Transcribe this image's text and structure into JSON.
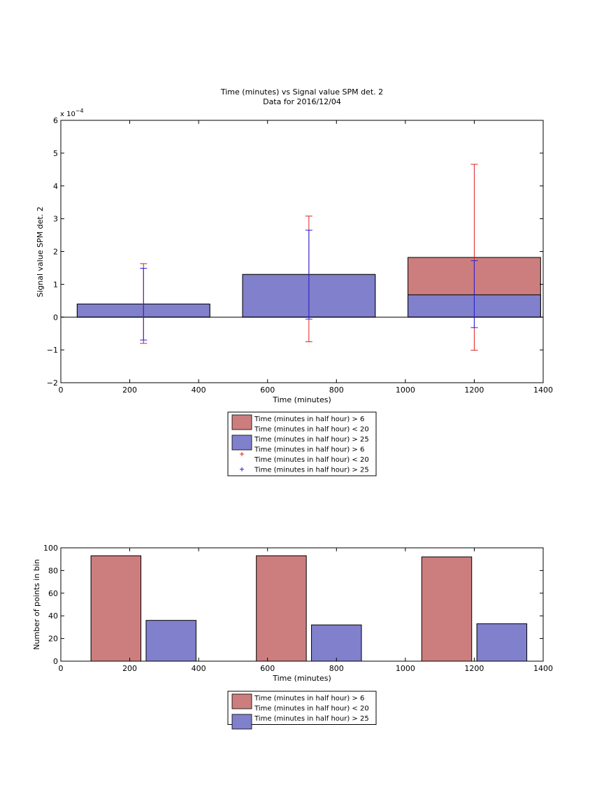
{
  "chart_data": [
    {
      "type": "bar",
      "title": "Time (minutes) vs Signal value SPM det. 2",
      "subtitle": "Data for 2016/12/04",
      "xlabel": "Time (minutes)",
      "ylabel": "Signal value SPM det. 2",
      "y_exponent_label": "x 10",
      "y_exponent_power": "−4",
      "xlim": [
        0,
        1400
      ],
      "ylim": [
        -2,
        6
      ],
      "y_scale_factor": 0.0001,
      "xticks": [
        "0",
        "200",
        "400",
        "600",
        "800",
        "1000",
        "1200",
        "1400"
      ],
      "yticks": [
        "−2",
        "−1",
        "0",
        "1",
        "2",
        "3",
        "4",
        "5",
        "6"
      ],
      "bars": {
        "centers": [
          240,
          720,
          1200
        ],
        "width": 385,
        "series": [
          {
            "color": "#cc7e7e",
            "values": [
              0.38,
              1.3,
              1.82
            ]
          },
          {
            "color": "#8080cc",
            "values": [
              0.4,
              1.3,
              0.68
            ]
          }
        ]
      },
      "errorbars": [
        {
          "color": "#e02020",
          "x": [
            240,
            720,
            1200
          ],
          "lower": [
            -0.8,
            -0.75,
            -1.01
          ],
          "upper": [
            1.63,
            3.08,
            4.66
          ]
        },
        {
          "color": "#2020e0",
          "x": [
            240,
            720,
            1200
          ],
          "lower": [
            -0.7,
            -0.06,
            -0.32
          ],
          "upper": [
            1.49,
            2.65,
            1.72
          ]
        }
      ],
      "legend": {
        "placement": "below",
        "entries": [
          {
            "kind": "patch",
            "color": "#cc7e7e",
            "lines": [
              "Time (minutes in half hour) > 6",
              "Time (minutes in half hour) < 20"
            ]
          },
          {
            "kind": "patch",
            "color": "#8080cc",
            "lines": [
              "Time (minutes in half hour) > 25"
            ]
          },
          {
            "kind": "marker",
            "color": "#e02020",
            "lines": [
              "Time (minutes in half hour) > 6",
              "Time (minutes in half hour) < 20"
            ]
          },
          {
            "kind": "marker",
            "color": "#2020e0",
            "lines": [
              "Time (minutes in half hour) > 25"
            ]
          }
        ]
      }
    },
    {
      "type": "bar",
      "xlabel": "Time (minutes)",
      "ylabel": "Number of points in bin",
      "xlim": [
        0,
        1400
      ],
      "ylim": [
        0,
        100
      ],
      "xticks": [
        "0",
        "200",
        "400",
        "600",
        "800",
        "1000",
        "1200",
        "1400"
      ],
      "yticks": [
        "0",
        "20",
        "40",
        "60",
        "80",
        "100"
      ],
      "bars": {
        "width": 145,
        "series": [
          {
            "color": "#cc7e7e",
            "centers": [
              160,
              640,
              1120
            ],
            "values": [
              93,
              93,
              92
            ]
          },
          {
            "color": "#8080cc",
            "centers": [
              320,
              800,
              1280
            ],
            "values": [
              36,
              32,
              33
            ]
          }
        ]
      },
      "legend": {
        "placement": "below",
        "entries": [
          {
            "kind": "patch",
            "color": "#cc7e7e",
            "lines": [
              "Time (minutes in half hour) > 6",
              "Time (minutes in half hour) < 20"
            ]
          },
          {
            "kind": "patch",
            "color": "#8080cc",
            "lines": [
              "Time (minutes in half hour) > 25"
            ]
          }
        ]
      }
    }
  ]
}
